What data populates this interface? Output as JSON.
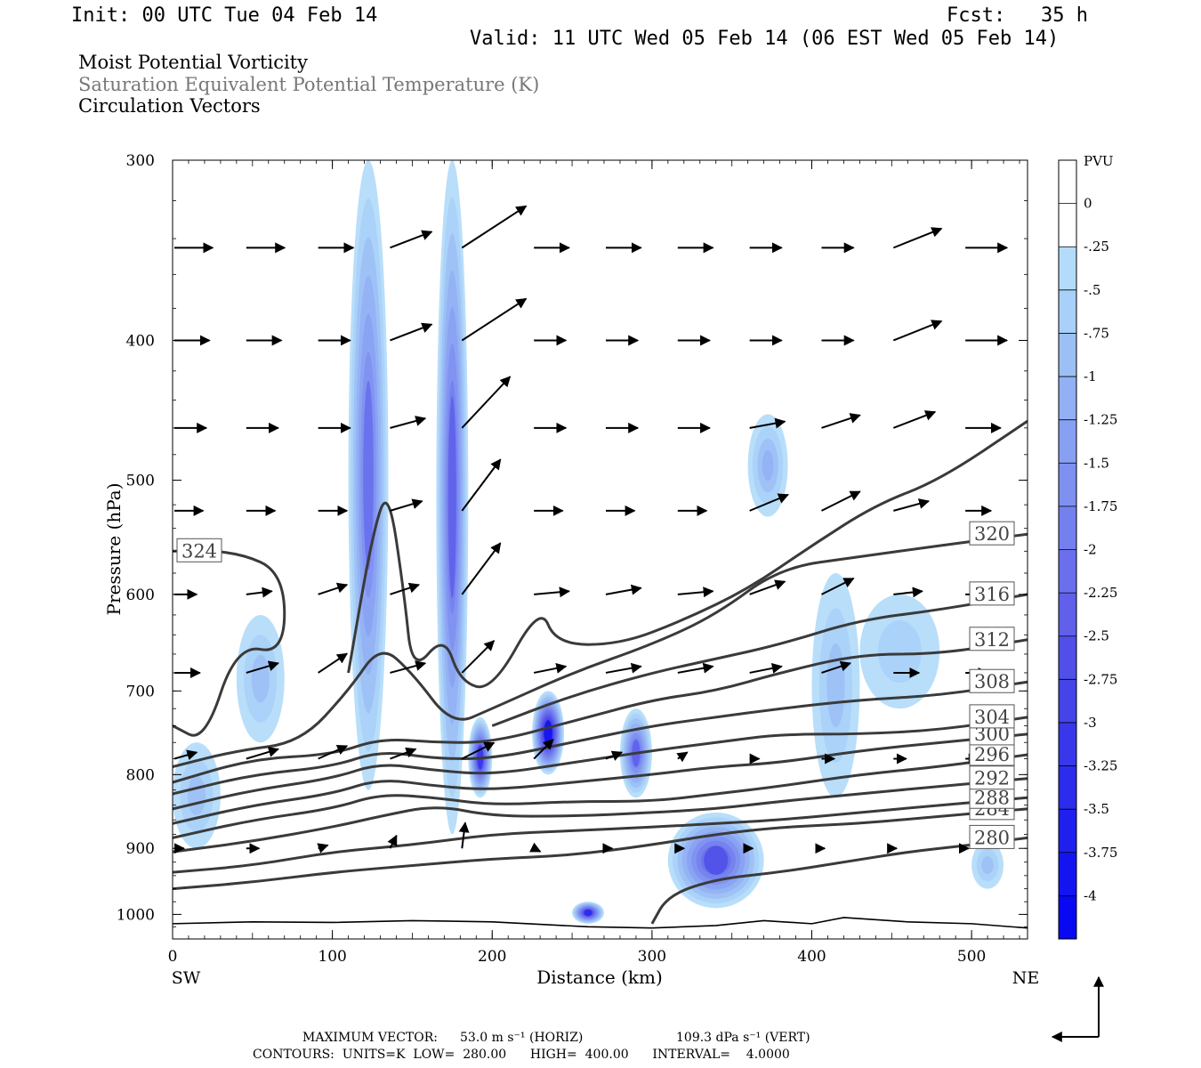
{
  "header": {
    "init": "Init: 00 UTC Tue 04 Feb 14",
    "fcst": "Fcst:   35 h",
    "valid": "Valid: 11 UTC Wed 05 Feb 14 (06 EST Wed 05 Feb 14)",
    "fields": [
      "Moist Potential Vorticity",
      "Saturation Equivalent Potential Temperature (K)",
      "Circulation Vectors"
    ]
  },
  "footer": {
    "max_vector_label": "MAXIMUM VECTOR:",
    "max_horiz": "53.0 m s⁻¹ (HORIZ)",
    "max_vert": "109.3 dPa s⁻¹ (VERT)",
    "contours": "CONTOURS:  UNITS=K  LOW=  280.00      HIGH=  400.00      INTERVAL=    4.0000"
  },
  "colors": {
    "contour": "#3a3a3a",
    "pv_scale": [
      "#ffffff",
      "#ffffff",
      "#b4dcfa",
      "#a8d0f8",
      "#9cc0f6",
      "#92b0f4",
      "#88a0f2",
      "#7e90f0",
      "#7480ee",
      "#6a70ec",
      "#6060ea",
      "#5050e8",
      "#4444e8",
      "#3838ea",
      "#2c2cec",
      "#2020ee",
      "#1414f0",
      "#0808f2"
    ]
  },
  "chart_data": {
    "type": "cross-section",
    "xlabel": "Distance (km)",
    "ylabel": "Pressure (hPa)",
    "xlim": [
      0,
      535
    ],
    "ylim": [
      1040,
      300
    ],
    "y_scale": "log",
    "x_ticks": [
      0,
      100,
      200,
      300,
      400,
      500
    ],
    "x_tick_labels": [
      "0",
      "100",
      "200",
      "300",
      "400",
      "500"
    ],
    "y_ticks": [
      300,
      400,
      500,
      600,
      700,
      800,
      900,
      1000
    ],
    "y_tick_labels": [
      "300",
      "400",
      "500",
      "600",
      "700",
      "800",
      "900",
      "1000"
    ],
    "left_end_label": "SW",
    "right_end_label": "NE",
    "colorbar": {
      "unit": "PVU",
      "levels": [
        0,
        -0.25,
        -0.5,
        -0.75,
        -1,
        -1.25,
        -1.5,
        -1.75,
        -2,
        -2.25,
        -2.5,
        -2.75,
        -3,
        -3.25,
        -3.5,
        -3.75,
        -4
      ],
      "labels": [
        "0",
        "-.25",
        "-.5",
        "-.75",
        "-1",
        "-1.25",
        "-1.5",
        "-1.75",
        "-2",
        "-2.25",
        "-2.5",
        "-2.75",
        "-3",
        "-3.25",
        "-3.5",
        "-3.75",
        "-4"
      ]
    },
    "contours": [
      {
        "value": 280,
        "label": "280",
        "points": [
          [
            300,
            1015
          ],
          [
            310,
            970
          ],
          [
            340,
            945
          ],
          [
            380,
            935
          ],
          [
            420,
            920
          ],
          [
            460,
            905
          ],
          [
            500,
            895
          ],
          [
            535,
            885
          ]
        ]
      },
      {
        "value": 284,
        "label": "284",
        "points": [
          [
            0,
            960
          ],
          [
            50,
            950
          ],
          [
            100,
            935
          ],
          [
            150,
            925
          ],
          [
            200,
            915
          ],
          [
            250,
            910
          ],
          [
            300,
            895
          ],
          [
            340,
            880
          ],
          [
            380,
            870
          ],
          [
            430,
            865
          ],
          [
            480,
            855
          ],
          [
            535,
            845
          ]
        ]
      },
      {
        "value": 288,
        "label": "288",
        "points": [
          [
            0,
            935
          ],
          [
            50,
            925
          ],
          [
            100,
            905
          ],
          [
            150,
            895
          ],
          [
            200,
            880
          ],
          [
            250,
            875
          ],
          [
            300,
            870
          ],
          [
            340,
            865
          ],
          [
            380,
            860
          ],
          [
            430,
            850
          ],
          [
            480,
            840
          ],
          [
            535,
            830
          ]
        ]
      },
      {
        "value": 292,
        "label": "292",
        "points": [
          [
            0,
            905
          ],
          [
            50,
            890
          ],
          [
            100,
            870
          ],
          [
            130,
            855
          ],
          [
            165,
            840
          ],
          [
            200,
            855
          ],
          [
            250,
            855
          ],
          [
            300,
            850
          ],
          [
            340,
            845
          ],
          [
            380,
            835
          ],
          [
            430,
            825
          ],
          [
            480,
            815
          ],
          [
            535,
            805
          ]
        ]
      },
      {
        "value": 296,
        "label": "296",
        "points": [
          [
            0,
            885
          ],
          [
            50,
            860
          ],
          [
            100,
            845
          ],
          [
            130,
            825
          ],
          [
            165,
            830
          ],
          [
            200,
            840
          ],
          [
            250,
            835
          ],
          [
            300,
            835
          ],
          [
            340,
            825
          ],
          [
            380,
            815
          ],
          [
            430,
            800
          ],
          [
            480,
            790
          ],
          [
            535,
            775
          ]
        ]
      },
      {
        "value": 300,
        "label": "300",
        "points": [
          [
            0,
            865
          ],
          [
            50,
            840
          ],
          [
            100,
            825
          ],
          [
            130,
            805
          ],
          [
            165,
            815
          ],
          [
            200,
            820
          ],
          [
            250,
            810
          ],
          [
            300,
            800
          ],
          [
            340,
            790
          ],
          [
            380,
            785
          ],
          [
            430,
            770
          ],
          [
            480,
            760
          ],
          [
            535,
            750
          ]
        ]
      },
      {
        "value": 304,
        "label": "304",
        "points": [
          [
            0,
            845
          ],
          [
            50,
            820
          ],
          [
            100,
            805
          ],
          [
            130,
            785
          ],
          [
            165,
            795
          ],
          [
            200,
            800
          ],
          [
            250,
            785
          ],
          [
            300,
            770
          ],
          [
            340,
            760
          ],
          [
            380,
            750
          ],
          [
            430,
            750
          ],
          [
            480,
            745
          ],
          [
            535,
            730
          ]
        ]
      },
      {
        "value": 308,
        "label": "308",
        "points": [
          [
            0,
            825
          ],
          [
            50,
            800
          ],
          [
            100,
            790
          ],
          [
            130,
            770
          ],
          [
            165,
            780
          ],
          [
            200,
            780
          ],
          [
            250,
            760
          ],
          [
            300,
            740
          ],
          [
            340,
            730
          ],
          [
            380,
            720
          ],
          [
            430,
            710
          ],
          [
            480,
            705
          ],
          [
            535,
            690
          ]
        ]
      },
      {
        "value": 312,
        "label": "312",
        "points": [
          [
            0,
            810
          ],
          [
            50,
            780
          ],
          [
            100,
            775
          ],
          [
            130,
            755
          ],
          [
            165,
            760
          ],
          [
            200,
            760
          ],
          [
            250,
            735
          ],
          [
            300,
            710
          ],
          [
            340,
            700
          ],
          [
            380,
            680
          ],
          [
            430,
            660
          ],
          [
            480,
            660
          ],
          [
            535,
            645
          ]
        ]
      },
      {
        "value": 316,
        "label": "316",
        "points": [
          [
            200,
            740
          ],
          [
            250,
            705
          ],
          [
            300,
            680
          ],
          [
            340,
            665
          ],
          [
            380,
            650
          ],
          [
            430,
            625
          ],
          [
            480,
            615
          ],
          [
            535,
            600
          ]
        ]
      },
      {
        "value": 320,
        "label": "320",
        "points": [
          [
            0,
            790
          ],
          [
            40,
            770
          ],
          [
            80,
            760
          ],
          [
            110,
            700
          ],
          [
            130,
            650
          ],
          [
            150,
            680
          ],
          [
            175,
            740
          ],
          [
            200,
            720
          ],
          [
            250,
            680
          ],
          [
            300,
            650
          ],
          [
            340,
            620
          ],
          [
            380,
            575
          ],
          [
            430,
            565
          ],
          [
            480,
            555
          ],
          [
            535,
            545
          ]
        ]
      },
      {
        "value": 324,
        "label": "324",
        "points": [
          [
            0,
            740
          ],
          [
            20,
            760
          ],
          [
            40,
            650
          ],
          [
            70,
            660
          ],
          [
            70,
            580
          ],
          [
            40,
            560
          ],
          [
            0,
            560
          ]
        ]
      },
      {
        "value": 324,
        "label": "",
        "points": [
          [
            110,
            680
          ],
          [
            125,
            545
          ],
          [
            135,
            505
          ],
          [
            145,
            600
          ],
          [
            150,
            680
          ],
          [
            170,
            640
          ],
          [
            180,
            690
          ],
          [
            200,
            700
          ],
          [
            230,
            610
          ],
          [
            240,
            650
          ],
          [
            280,
            650
          ],
          [
            320,
            625
          ],
          [
            360,
            595
          ],
          [
            400,
            555
          ],
          [
            440,
            520
          ],
          [
            480,
            500
          ],
          [
            535,
            455
          ]
        ]
      }
    ],
    "pv_regions": [
      {
        "x": [
          110,
          135
        ],
        "p": [
          300,
          820
        ],
        "level": 7
      },
      {
        "x": [
          165,
          185
        ],
        "p": [
          300,
          880
        ],
        "level": 8
      },
      {
        "x": [
          185,
          200
        ],
        "p": [
          730,
          830
        ],
        "level": 11
      },
      {
        "x": [
          225,
          245
        ],
        "p": [
          700,
          800
        ],
        "level": 14
      },
      {
        "x": [
          280,
          300
        ],
        "p": [
          720,
          830
        ],
        "level": 8
      },
      {
        "x": [
          310,
          370
        ],
        "p": [
          850,
          990
        ],
        "level": 9
      },
      {
        "x": [
          360,
          385
        ],
        "p": [
          450,
          530
        ],
        "level": 3
      },
      {
        "x": [
          400,
          430
        ],
        "p": [
          580,
          830
        ],
        "level": 2
      },
      {
        "x": [
          430,
          480
        ],
        "p": [
          600,
          720
        ],
        "level": 1
      },
      {
        "x": [
          0,
          30
        ],
        "p": [
          760,
          900
        ],
        "level": 2
      },
      {
        "x": [
          40,
          70
        ],
        "p": [
          620,
          760
        ],
        "level": 2
      },
      {
        "x": [
          250,
          270
        ],
        "p": [
          980,
          1015
        ],
        "level": 12
      },
      {
        "x": [
          500,
          520
        ],
        "p": [
          890,
          960
        ],
        "level": 2
      }
    ],
    "vectors": {
      "x": [
        0,
        45,
        90,
        135,
        180,
        225,
        270,
        315,
        360,
        405,
        450,
        495
      ],
      "p": [
        345,
        400,
        460,
        525,
        600,
        680,
        780,
        900
      ],
      "u": [
        [
          1.2,
          1.2,
          1.1,
          1.3,
          2.0,
          1.1,
          1.1,
          1.1,
          1.0,
          1.0,
          1.5,
          1.3
        ],
        [
          1.1,
          1.1,
          1.0,
          1.3,
          2.0,
          1.0,
          1.0,
          1.0,
          1.0,
          1.0,
          1.5,
          1.3
        ],
        [
          1.0,
          1.0,
          1.0,
          1.1,
          1.5,
          1.0,
          1.0,
          1.0,
          1.1,
          1.2,
          1.3,
          1.1
        ],
        [
          0.9,
          0.9,
          0.9,
          1.0,
          1.2,
          0.9,
          0.9,
          0.9,
          1.2,
          1.2,
          1.1,
          0.8
        ],
        [
          0.7,
          0.8,
          0.9,
          0.9,
          1.2,
          1.1,
          1.1,
          1.1,
          1.1,
          1.0,
          0.9,
          0.8
        ],
        [
          0.8,
          1.0,
          0.9,
          1.1,
          1.0,
          1.0,
          1.1,
          1.1,
          1.0,
          0.9,
          0.8,
          0.7
        ],
        [
          0.7,
          1.0,
          0.9,
          0.8,
          1.0,
          0.6,
          0.5,
          0.3,
          0.3,
          0.4,
          0.4,
          0.4
        ],
        [
          0.3,
          0.4,
          0.3,
          0.2,
          0.1,
          0.2,
          0.2,
          0.2,
          0.1,
          0.1,
          0.1,
          0.1
        ]
      ],
      "w": [
        [
          0,
          0,
          0,
          0.5,
          1.3,
          0,
          0,
          0,
          0,
          0,
          0.6,
          0
        ],
        [
          0,
          0,
          0,
          0.5,
          1.3,
          0,
          0,
          0,
          0,
          0,
          0.6,
          0
        ],
        [
          0,
          0,
          0,
          0.3,
          1.6,
          0,
          0,
          0,
          0.2,
          0.4,
          0.5,
          0
        ],
        [
          0,
          0,
          0,
          0.3,
          1.6,
          0,
          0,
          0,
          0.5,
          0.6,
          0.3,
          0
        ],
        [
          0,
          0.1,
          0.3,
          0.3,
          1.6,
          0.1,
          0.2,
          0.1,
          0.4,
          0.5,
          0.1,
          0
        ],
        [
          0,
          0.3,
          0.6,
          0.3,
          1.0,
          0.2,
          0.2,
          0.2,
          0.2,
          0.3,
          0,
          0
        ],
        [
          0.2,
          0.3,
          0.4,
          0.3,
          0.5,
          0.6,
          0.2,
          0.2,
          0,
          0,
          0,
          0
        ],
        [
          0,
          0,
          0.1,
          0.4,
          0.8,
          -0.1,
          0,
          0,
          0,
          0,
          0,
          0
        ]
      ]
    },
    "surface_line": [
      [
        0,
        1015
      ],
      [
        50,
        1012
      ],
      [
        100,
        1013
      ],
      [
        150,
        1010
      ],
      [
        200,
        1012
      ],
      [
        260,
        1020
      ],
      [
        300,
        1022
      ],
      [
        340,
        1018
      ],
      [
        370,
        1010
      ],
      [
        400,
        1015
      ],
      [
        420,
        1005
      ],
      [
        460,
        1012
      ],
      [
        500,
        1015
      ],
      [
        535,
        1022
      ]
    ]
  }
}
